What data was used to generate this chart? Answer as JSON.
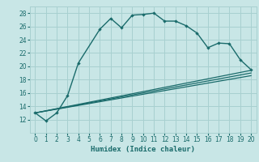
{
  "xlabel": "Humidex (Indice chaleur)",
  "bg_color": "#c8e6e6",
  "grid_color": "#a8d0d0",
  "line_color": "#1a6b6b",
  "x_values": [
    0,
    1,
    2,
    3,
    4,
    6,
    7,
    8,
    9,
    10,
    11,
    12,
    13,
    14,
    15,
    16,
    17,
    18,
    19,
    20
  ],
  "y_curve": [
    13.0,
    11.8,
    13.0,
    15.6,
    20.5,
    25.6,
    27.2,
    25.8,
    27.7,
    27.8,
    28.0,
    26.8,
    26.8,
    26.1,
    25.0,
    22.8,
    23.5,
    23.4,
    21.0,
    19.5
  ],
  "straight_lines": [
    [
      0,
      13.0,
      20,
      19.4
    ],
    [
      0,
      13.0,
      20,
      19.0
    ],
    [
      0,
      13.0,
      20,
      18.6
    ]
  ],
  "ylim": [
    10.0,
    29.0
  ],
  "xlim": [
    -0.5,
    20.5
  ],
  "yticks": [
    12,
    14,
    16,
    18,
    20,
    22,
    24,
    26,
    28
  ],
  "xticks": [
    0,
    1,
    2,
    3,
    4,
    5,
    6,
    7,
    8,
    9,
    10,
    11,
    12,
    13,
    14,
    15,
    16,
    17,
    18,
    19,
    20
  ],
  "xlabel_fontsize": 6.5,
  "tick_fontsize": 5.5
}
